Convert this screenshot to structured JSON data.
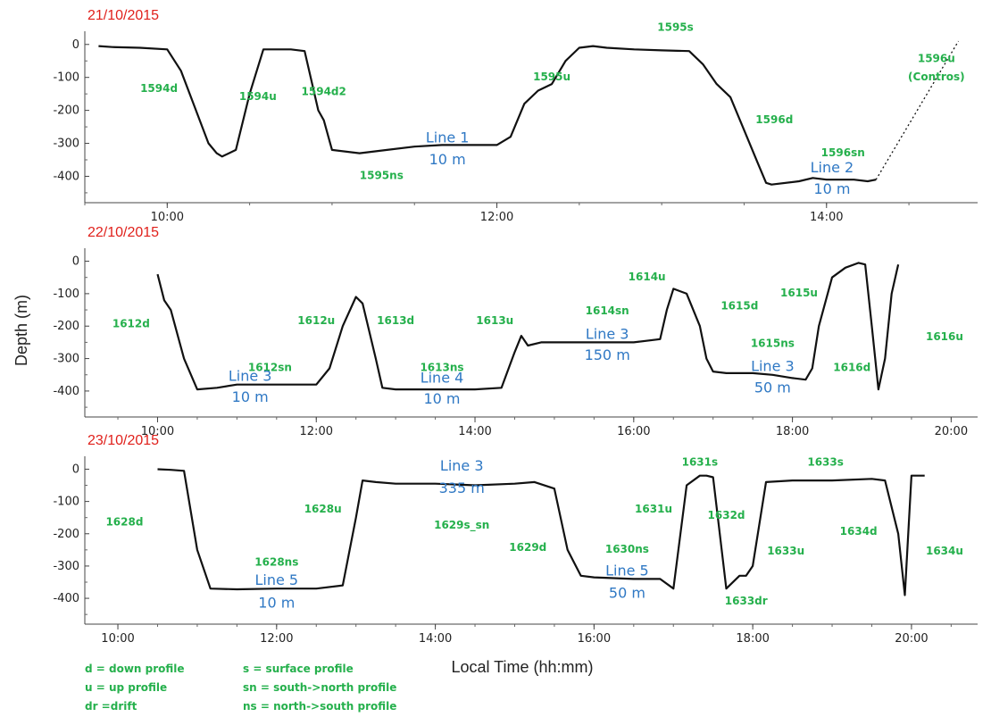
{
  "chart_data": [
    {
      "type": "line",
      "date": "21/10/2015",
      "xlim": [
        "09:30",
        "14:55"
      ],
      "ylim": [
        -480,
        40
      ],
      "x_ticks": [
        "10:00",
        "12:00",
        "14:00"
      ],
      "y_ticks": [
        0,
        -100,
        -200,
        -300,
        -400
      ],
      "series": [
        {
          "x": [
            "09:35",
            "09:40",
            "09:50",
            "10:00",
            "10:05",
            "10:10",
            "10:15",
            "10:18",
            "10:20",
            "10:25",
            "10:30",
            "10:35",
            "10:40",
            "10:45",
            "10:50",
            "10:55",
            "10:57",
            "11:00",
            "11:10",
            "11:20",
            "11:30",
            "11:40",
            "11:50",
            "12:00",
            "12:05",
            "12:10",
            "12:15",
            "12:20",
            "12:25",
            "12:30",
            "12:35",
            "12:40",
            "12:50",
            "13:00",
            "13:10",
            "13:15",
            "13:20",
            "13:25",
            "13:30",
            "13:35",
            "13:38",
            "13:40",
            "13:50",
            "13:55",
            "14:00",
            "14:10",
            "14:15",
            "14:18"
          ],
          "y": [
            -5,
            -8,
            -10,
            -15,
            -80,
            -190,
            -300,
            -330,
            -340,
            -320,
            -150,
            -15,
            -15,
            -15,
            -20,
            -200,
            -230,
            -320,
            -330,
            -320,
            -310,
            -305,
            -305,
            -305,
            -280,
            -180,
            -140,
            -120,
            -50,
            -10,
            -5,
            -10,
            -15,
            -18,
            -20,
            -60,
            -120,
            -160,
            -260,
            -360,
            -420,
            -425,
            -415,
            -405,
            -410,
            -410,
            -415,
            -410
          ]
        },
        {
          "x": [
            "14:18",
            "14:48"
          ],
          "y": [
            -410,
            10
          ],
          "style": "dotted"
        }
      ],
      "annotations": [
        {
          "text": "1594d",
          "x": "09:57",
          "y": -130,
          "kind": "profile"
        },
        {
          "text": "1594u",
          "x": "10:33",
          "y": -155,
          "kind": "profile"
        },
        {
          "text": "1594d2",
          "x": "10:57",
          "y": -140,
          "kind": "profile"
        },
        {
          "text": "1595ns",
          "x": "11:18",
          "y": -395,
          "kind": "profile"
        },
        {
          "text": "1595u",
          "x": "12:20",
          "y": -95,
          "kind": "profile"
        },
        {
          "text": "1595s",
          "x": "13:05",
          "y": 55,
          "kind": "profile"
        },
        {
          "text": "1596d",
          "x": "13:41",
          "y": -225,
          "kind": "profile"
        },
        {
          "text": "1596sn",
          "x": "14:06",
          "y": -325,
          "kind": "profile"
        },
        {
          "text": "1596u",
          "x": "14:40",
          "y": -40,
          "kind": "profile"
        },
        {
          "text": "(Contros)",
          "x": "14:40",
          "y": -95,
          "kind": "profile"
        },
        {
          "text": "Line 1",
          "x": "11:42",
          "y": -283,
          "kind": "line"
        },
        {
          "text": "10 m",
          "x": "11:42",
          "y": -350,
          "kind": "line"
        },
        {
          "text": "Line 2",
          "x": "14:02",
          "y": -375,
          "kind": "line"
        },
        {
          "text": "10 m",
          "x": "14:02",
          "y": -440,
          "kind": "line"
        }
      ]
    },
    {
      "type": "line",
      "date": "22/10/2015",
      "xlim": [
        "09:05",
        "20:20"
      ],
      "ylim": [
        -480,
        40
      ],
      "x_ticks": [
        "10:00",
        "12:00",
        "14:00",
        "16:00",
        "18:00",
        "20:00"
      ],
      "y_ticks": [
        0,
        -100,
        -200,
        -300,
        -400
      ],
      "series": [
        {
          "x": [
            "10:00",
            "10:05",
            "10:10",
            "10:20",
            "10:30",
            "10:45",
            "11:00",
            "11:30",
            "12:00",
            "12:10",
            "12:20",
            "12:30",
            "12:35",
            "12:45",
            "12:50",
            "13:00",
            "13:30",
            "14:00",
            "14:20",
            "14:30",
            "14:35",
            "14:40",
            "14:50",
            "15:00",
            "15:30",
            "16:00",
            "16:20",
            "16:25",
            "16:30",
            "16:40",
            "16:50",
            "16:55",
            "17:00",
            "17:10",
            "17:20",
            "17:30",
            "17:45",
            "18:00",
            "18:10",
            "18:15",
            "18:20",
            "18:30",
            "18:40",
            "18:50",
            "18:55",
            "19:00",
            "19:05",
            "19:10",
            "19:15",
            "19:20"
          ],
          "y": [
            -40,
            -120,
            -150,
            -300,
            -395,
            -390,
            -380,
            -380,
            -380,
            -330,
            -200,
            -110,
            -130,
            -300,
            -390,
            -395,
            -395,
            -395,
            -390,
            -280,
            -230,
            -260,
            -250,
            -250,
            -250,
            -250,
            -240,
            -150,
            -85,
            -100,
            -200,
            -300,
            -340,
            -345,
            -345,
            -345,
            -350,
            -360,
            -365,
            -330,
            -200,
            -50,
            -20,
            -5,
            -10,
            -200,
            -395,
            -300,
            -100,
            -10
          ]
        }
      ],
      "annotations": [
        {
          "text": "1612d",
          "x": "09:40",
          "y": -190,
          "kind": "profile"
        },
        {
          "text": "1612u",
          "x": "12:00",
          "y": -180,
          "kind": "profile"
        },
        {
          "text": "1612sn",
          "x": "11:25",
          "y": -325,
          "kind": "profile"
        },
        {
          "text": "1613d",
          "x": "13:00",
          "y": -180,
          "kind": "profile"
        },
        {
          "text": "1613ns",
          "x": "13:35",
          "y": -325,
          "kind": "profile"
        },
        {
          "text": "1613u",
          "x": "14:15",
          "y": -180,
          "kind": "profile"
        },
        {
          "text": "1614sn",
          "x": "15:40",
          "y": -150,
          "kind": "profile"
        },
        {
          "text": "1614u",
          "x": "16:10",
          "y": -45,
          "kind": "profile"
        },
        {
          "text": "1615d",
          "x": "17:20",
          "y": -135,
          "kind": "profile"
        },
        {
          "text": "1615ns",
          "x": "17:45",
          "y": -250,
          "kind": "profile"
        },
        {
          "text": "1615u",
          "x": "18:05",
          "y": -95,
          "kind": "profile"
        },
        {
          "text": "1616d",
          "x": "18:45",
          "y": -325,
          "kind": "profile"
        },
        {
          "text": "1616u",
          "x": "19:55",
          "y": -230,
          "kind": "profile"
        },
        {
          "text": "Line 3",
          "x": "11:10",
          "y": -355,
          "kind": "line"
        },
        {
          "text": "10 m",
          "x": "11:10",
          "y": -420,
          "kind": "line"
        },
        {
          "text": "Line 4",
          "x": "13:35",
          "y": -360,
          "kind": "line"
        },
        {
          "text": "10 m",
          "x": "13:35",
          "y": -425,
          "kind": "line"
        },
        {
          "text": "Line 3",
          "x": "15:40",
          "y": -225,
          "kind": "line"
        },
        {
          "text": "150 m",
          "x": "15:40",
          "y": -290,
          "kind": "line"
        },
        {
          "text": "Line 3",
          "x": "17:45",
          "y": -325,
          "kind": "line"
        },
        {
          "text": "50 m",
          "x": "17:45",
          "y": -390,
          "kind": "line"
        }
      ]
    },
    {
      "type": "line",
      "date": "23/10/2015",
      "xlim": [
        "09:35",
        "20:50"
      ],
      "ylim": [
        -480,
        40
      ],
      "x_ticks": [
        "10:00",
        "12:00",
        "14:00",
        "16:00",
        "18:00",
        "20:00"
      ],
      "y_ticks": [
        0,
        -100,
        -200,
        -300,
        -400
      ],
      "series": [
        {
          "x": [
            "10:30",
            "10:40",
            "10:50",
            "11:00",
            "11:10",
            "11:30",
            "12:00",
            "12:30",
            "12:50",
            "13:00",
            "13:05",
            "13:15",
            "13:30",
            "14:00",
            "14:30",
            "15:00",
            "15:15",
            "15:30",
            "15:40",
            "15:50",
            "16:00",
            "16:30",
            "16:50",
            "17:00",
            "17:10",
            "17:20",
            "17:25",
            "17:30",
            "17:40",
            "17:50",
            "17:55",
            "18:00",
            "18:10",
            "18:30",
            "19:00",
            "19:30",
            "19:40",
            "19:50",
            "19:55",
            "20:00",
            "20:10"
          ],
          "y": [
            0,
            -2,
            -5,
            -250,
            -370,
            -372,
            -370,
            -370,
            -360,
            -150,
            -35,
            -40,
            -45,
            -45,
            -50,
            -45,
            -40,
            -60,
            -250,
            -330,
            -335,
            -340,
            -340,
            -370,
            -50,
            -20,
            -20,
            -25,
            -370,
            -330,
            -330,
            -300,
            -40,
            -35,
            -35,
            -30,
            -35,
            -200,
            -390,
            -20,
            -20
          ]
        }
      ],
      "annotations": [
        {
          "text": "1628d",
          "x": "10:05",
          "y": -160,
          "kind": "profile"
        },
        {
          "text": "1628u",
          "x": "12:35",
          "y": -120,
          "kind": "profile"
        },
        {
          "text": "1628ns",
          "x": "12:00",
          "y": -285,
          "kind": "profile"
        },
        {
          "text": "1629s_sn",
          "x": "14:20",
          "y": -170,
          "kind": "profile"
        },
        {
          "text": "1629d",
          "x": "15:10",
          "y": -240,
          "kind": "profile"
        },
        {
          "text": "1630ns",
          "x": "16:25",
          "y": -245,
          "kind": "profile"
        },
        {
          "text": "1631u",
          "x": "16:45",
          "y": -120,
          "kind": "profile"
        },
        {
          "text": "1631s",
          "x": "17:20",
          "y": 25,
          "kind": "profile"
        },
        {
          "text": "1632d",
          "x": "17:40",
          "y": -140,
          "kind": "profile"
        },
        {
          "text": "1633u",
          "x": "18:25",
          "y": -250,
          "kind": "profile"
        },
        {
          "text": "1633dr",
          "x": "17:55",
          "y": -405,
          "kind": "profile"
        },
        {
          "text": "1633s",
          "x": "18:55",
          "y": 25,
          "kind": "profile"
        },
        {
          "text": "1634d",
          "x": "19:20",
          "y": -190,
          "kind": "profile"
        },
        {
          "text": "1634u",
          "x": "20:25",
          "y": -250,
          "kind": "profile"
        },
        {
          "text": "Line 3",
          "x": "14:20",
          "y": 10,
          "kind": "line"
        },
        {
          "text": "335 m",
          "x": "14:20",
          "y": -60,
          "kind": "line"
        },
        {
          "text": "Line 5",
          "x": "12:00",
          "y": -345,
          "kind": "line"
        },
        {
          "text": "10 m",
          "x": "12:00",
          "y": -415,
          "kind": "line"
        },
        {
          "text": "Line 5",
          "x": "16:25",
          "y": -315,
          "kind": "line"
        },
        {
          "text": "50 m",
          "x": "16:25",
          "y": -385,
          "kind": "line"
        }
      ]
    }
  ],
  "axes": {
    "ylabel": "Depth (m)",
    "xlabel": "Local Time (hh:mm)"
  },
  "legend": {
    "left": [
      "d  = down profile",
      "u  = up profile",
      "dr =drift"
    ],
    "right": [
      "s  = surface profile",
      "sn = south->north  profile",
      "ns = north->south profile"
    ]
  },
  "colors": {
    "line": "#111111",
    "date": "#e0201b",
    "profile_label": "#25b04c",
    "line_label": "#2f78c4"
  }
}
